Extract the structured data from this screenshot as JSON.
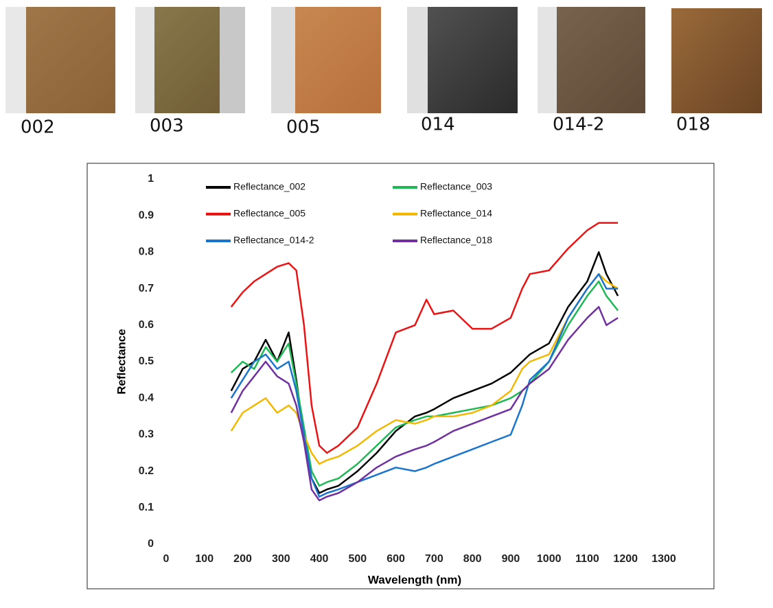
{
  "samples": [
    "002",
    "003",
    "005",
    "014",
    "014-2",
    "018"
  ],
  "chart_data": {
    "type": "line",
    "x_label": "Wavelength (nm)",
    "y_label": "Reflectance",
    "x": [
      170,
      200,
      230,
      260,
      290,
      320,
      340,
      360,
      380,
      400,
      420,
      450,
      500,
      550,
      600,
      650,
      680,
      700,
      750,
      800,
      850,
      900,
      930,
      950,
      1000,
      1050,
      1100,
      1130,
      1150,
      1180
    ],
    "series": [
      {
        "name": "Reflectance_002",
        "color": "#000000",
        "values": [
          0.42,
          0.48,
          0.5,
          0.56,
          0.5,
          0.58,
          0.45,
          0.3,
          0.18,
          0.14,
          0.15,
          0.16,
          0.2,
          0.25,
          0.31,
          0.35,
          0.36,
          0.37,
          0.4,
          0.42,
          0.44,
          0.47,
          0.5,
          0.52,
          0.55,
          0.65,
          0.72,
          0.8,
          0.74,
          0.68
        ]
      },
      {
        "name": "Reflectance_003",
        "color": "#1db954",
        "values": [
          0.47,
          0.5,
          0.48,
          0.54,
          0.5,
          0.55,
          0.44,
          0.32,
          0.2,
          0.16,
          0.17,
          0.18,
          0.22,
          0.27,
          0.32,
          0.34,
          0.35,
          0.35,
          0.36,
          0.37,
          0.38,
          0.4,
          0.42,
          0.44,
          0.5,
          0.6,
          0.68,
          0.72,
          0.68,
          0.64
        ]
      },
      {
        "name": "Reflectance_005",
        "color": "#ee1111",
        "values": [
          0.65,
          0.69,
          0.72,
          0.74,
          0.76,
          0.77,
          0.75,
          0.6,
          0.38,
          0.27,
          0.25,
          0.27,
          0.32,
          0.44,
          0.58,
          0.6,
          0.67,
          0.63,
          0.64,
          0.59,
          0.59,
          0.62,
          0.7,
          0.74,
          0.75,
          0.81,
          0.86,
          0.88,
          0.88,
          0.88
        ]
      },
      {
        "name": "Reflectance_014",
        "color": "#f5b800",
        "values": [
          0.31,
          0.36,
          0.38,
          0.4,
          0.36,
          0.38,
          0.36,
          0.3,
          0.25,
          0.22,
          0.23,
          0.24,
          0.27,
          0.31,
          0.34,
          0.33,
          0.34,
          0.35,
          0.35,
          0.36,
          0.38,
          0.42,
          0.48,
          0.5,
          0.52,
          0.62,
          0.7,
          0.74,
          0.72,
          0.7
        ]
      },
      {
        "name": "Reflectance_014-2",
        "color": "#1874cd",
        "values": [
          0.4,
          0.45,
          0.5,
          0.52,
          0.48,
          0.5,
          0.42,
          0.3,
          0.18,
          0.13,
          0.14,
          0.15,
          0.17,
          0.19,
          0.21,
          0.2,
          0.21,
          0.22,
          0.24,
          0.26,
          0.28,
          0.3,
          0.38,
          0.45,
          0.5,
          0.62,
          0.7,
          0.74,
          0.7,
          0.7
        ]
      },
      {
        "name": "Reflectance_018",
        "color": "#7030a0",
        "values": [
          0.36,
          0.42,
          0.46,
          0.5,
          0.46,
          0.44,
          0.38,
          0.28,
          0.15,
          0.12,
          0.13,
          0.14,
          0.17,
          0.21,
          0.24,
          0.26,
          0.27,
          0.28,
          0.31,
          0.33,
          0.35,
          0.37,
          0.42,
          0.44,
          0.48,
          0.56,
          0.62,
          0.65,
          0.6,
          0.62
        ]
      }
    ],
    "xlim": [
      0,
      1300
    ],
    "xticks": [
      0,
      100,
      200,
      300,
      400,
      500,
      600,
      700,
      800,
      900,
      1000,
      1100,
      1200,
      1300
    ],
    "ylim": [
      0,
      1
    ],
    "yticks": [
      0,
      0.1,
      0.2,
      0.3,
      0.4,
      0.5,
      0.6,
      0.7,
      0.8,
      0.9,
      1
    ],
    "grid": false
  }
}
